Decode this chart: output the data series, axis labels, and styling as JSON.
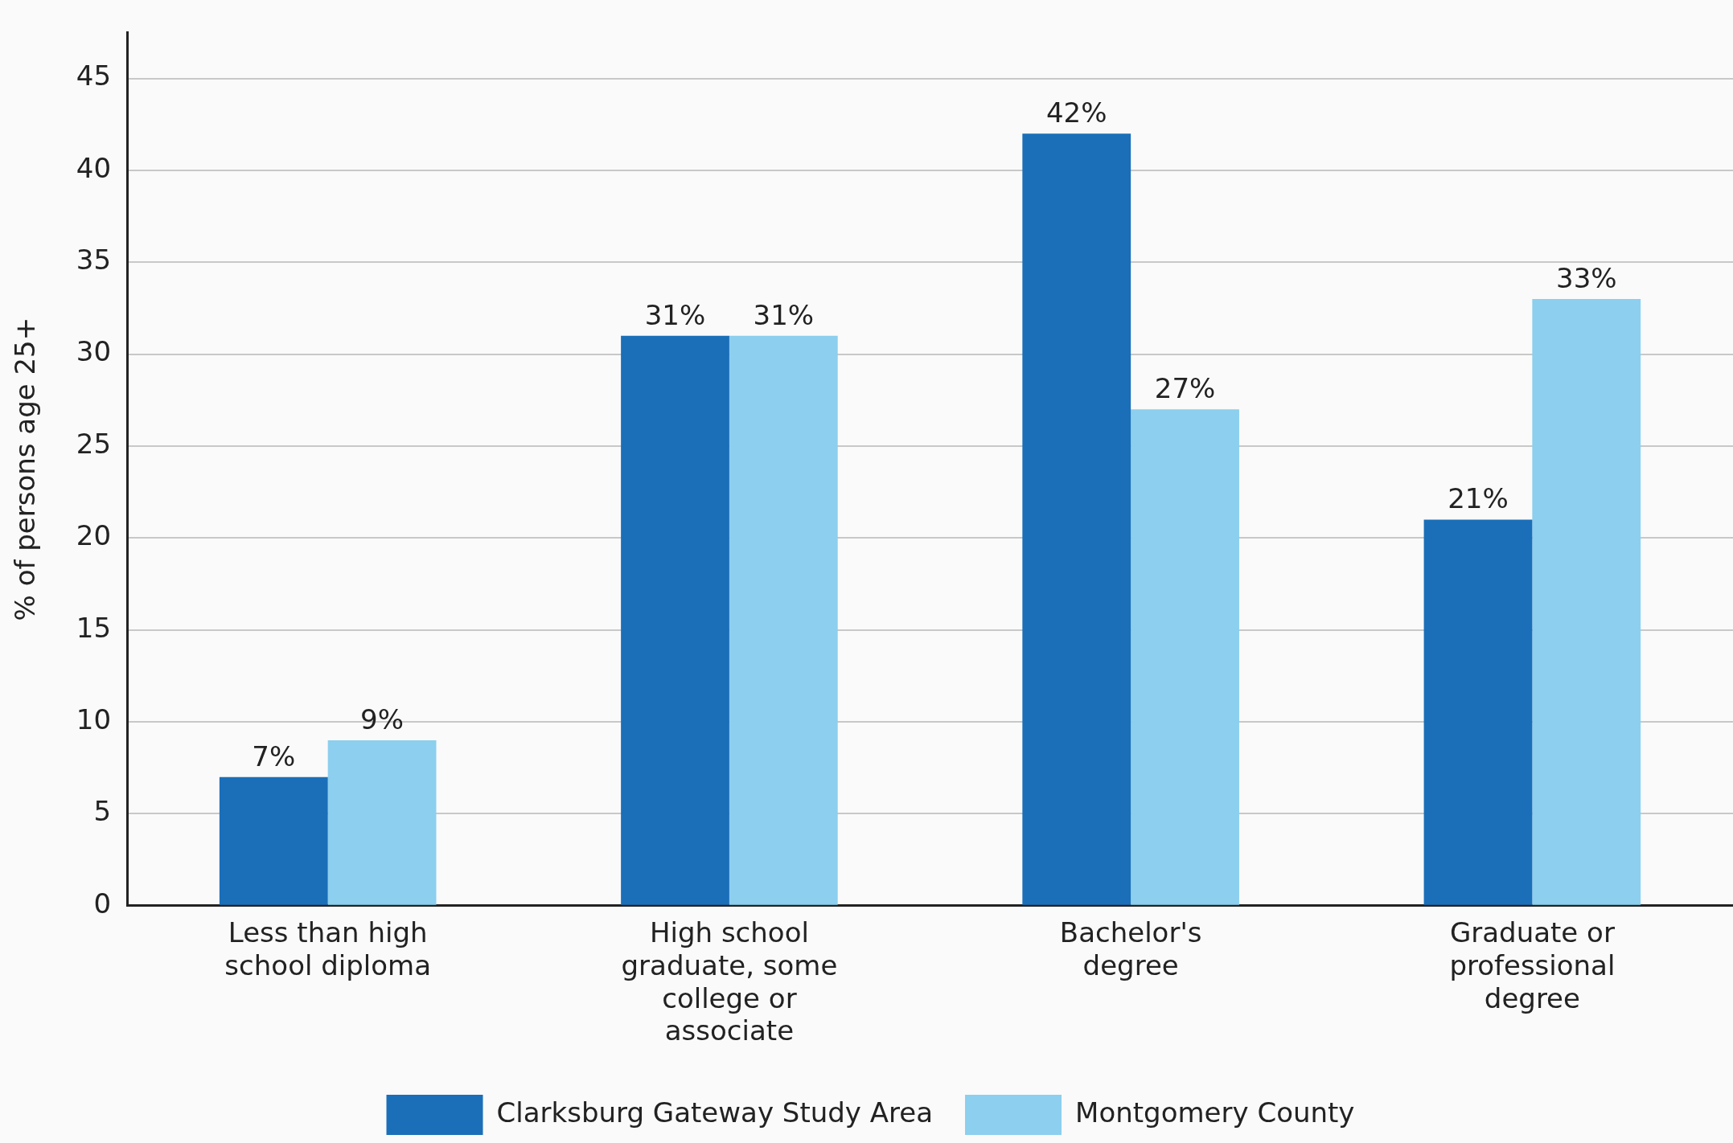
{
  "chart_data": {
    "type": "bar",
    "ylabel": "% of persons age 25+",
    "categories": [
      "Less than high school diploma",
      "High school graduate, some college or associate",
      "Bachelor's degree",
      "Graduate or professional degree"
    ],
    "series": [
      {
        "name": "Clarksburg Gateway Study Area",
        "color": "#1a6fb8",
        "values": [
          7,
          31,
          42,
          21
        ],
        "value_labels": [
          "7%",
          "31%",
          "42%",
          "21%"
        ]
      },
      {
        "name": "Montgomery County",
        "color": "#8ccfee",
        "values": [
          9,
          31,
          27,
          33
        ],
        "value_labels": [
          "9%",
          "31%",
          "27%",
          "33%"
        ]
      }
    ],
    "ylim": [
      0,
      47.5
    ],
    "yticks": [
      0,
      5,
      10,
      15,
      20,
      25,
      30,
      35,
      40,
      45
    ],
    "grid": "y",
    "legend": "bottom"
  }
}
